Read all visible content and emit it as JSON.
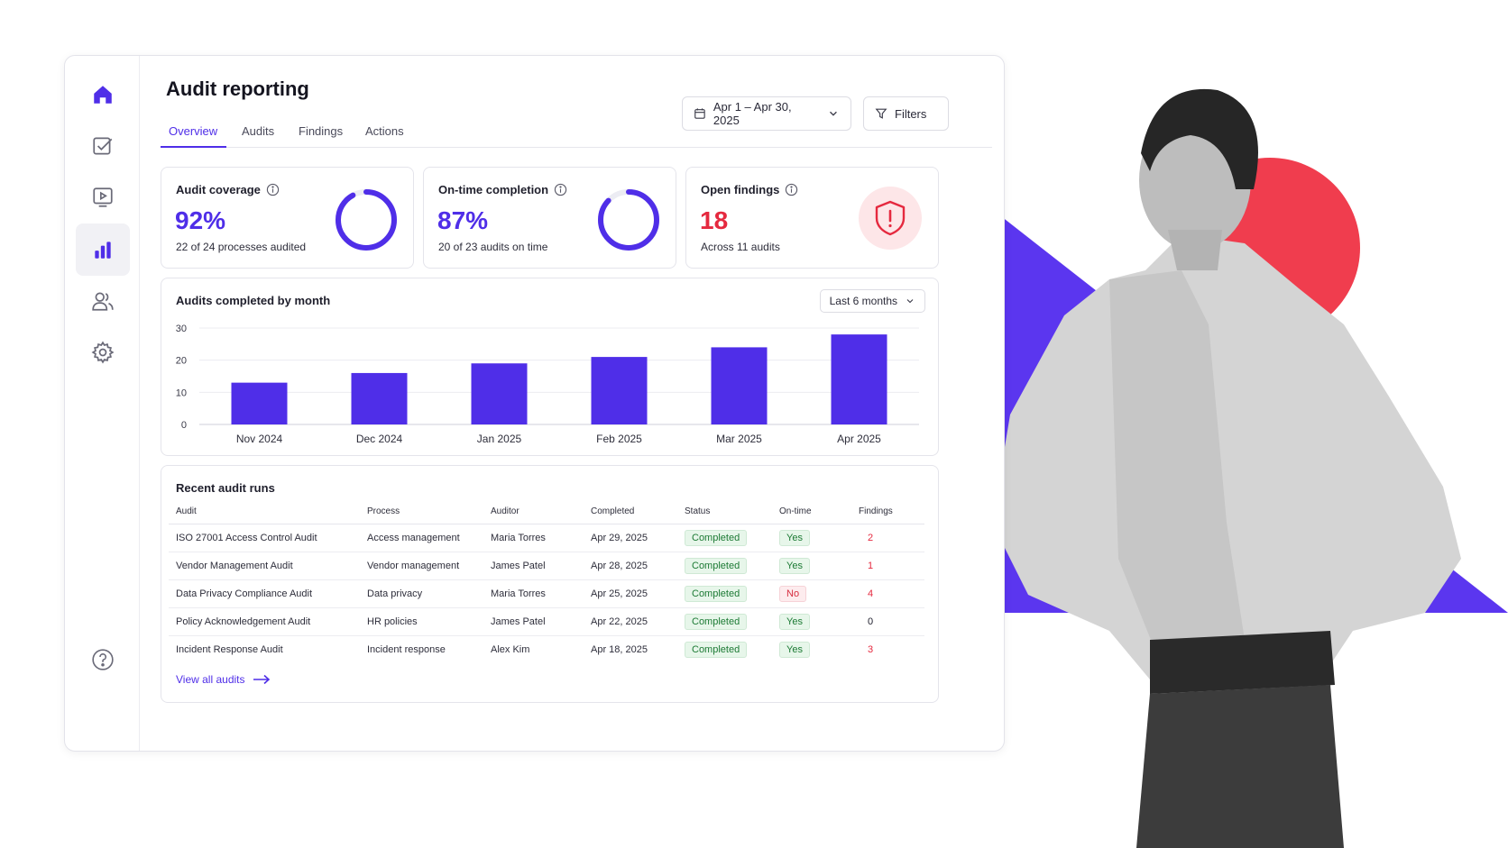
{
  "page": {
    "title": "Audit reporting"
  },
  "tabs": [
    "Overview",
    "Audits",
    "Findings",
    "Actions"
  ],
  "toolbar": {
    "date_range": "Apr 1 – Apr 30, 2025",
    "filters_label": "Filters"
  },
  "sidebar": {
    "items": [
      {
        "icon": "home-icon",
        "active": false
      },
      {
        "icon": "checklist-icon",
        "active": false
      },
      {
        "icon": "video-icon",
        "active": false
      },
      {
        "icon": "bar-chart-icon",
        "active": true
      },
      {
        "icon": "users-icon",
        "active": false
      },
      {
        "icon": "gear-icon",
        "active": false
      }
    ],
    "help_icon": "help-icon"
  },
  "kpis": [
    {
      "label": "Audit coverage",
      "value": "92%",
      "subtext": "22 of 24 processes audited",
      "progress": 0.92
    },
    {
      "label": "On-time completion",
      "value": "87%",
      "subtext": "20 of 23 audits on time",
      "progress": 0.87
    },
    {
      "label": "Open findings",
      "value": "18",
      "subtext": "Across 11 audits",
      "icon": "shield-alert-icon"
    }
  ],
  "colors": {
    "accent": "#4f2ee8",
    "danger": "#e5293f",
    "success": "#1c7a34",
    "deco_red": "#f03d4e",
    "deco_purple": "#5b36ef"
  },
  "chart_data": {
    "type": "bar",
    "title": "Audits completed by month",
    "range_select": "Last 6 months",
    "categories": [
      "Nov 2024",
      "Dec 2024",
      "Jan 2025",
      "Feb 2025",
      "Mar 2025",
      "Apr 2025"
    ],
    "values": [
      13,
      16,
      19,
      21,
      24,
      28
    ],
    "yticks": [
      0,
      10,
      20,
      30
    ],
    "ylim": [
      0,
      30
    ],
    "grid": true
  },
  "recent": {
    "title": "Recent audit runs",
    "columns": [
      "Audit",
      "Process",
      "Auditor",
      "Completed",
      "Status",
      "On-time",
      "Findings"
    ],
    "rows": [
      [
        "ISO 27001 Access Control Audit",
        "Access management",
        "Maria Torres",
        "Apr 29, 2025",
        "Completed",
        "Yes",
        "2"
      ],
      [
        "Vendor Management Audit",
        "Vendor management",
        "James Patel",
        "Apr 28, 2025",
        "Completed",
        "Yes",
        "1"
      ],
      [
        "Data Privacy Compliance Audit",
        "Data privacy",
        "Maria Torres",
        "Apr 25, 2025",
        "Completed",
        "No",
        "4"
      ],
      [
        "Policy Acknowledgement Audit",
        "HR policies",
        "James Patel",
        "Apr 22, 2025",
        "Completed",
        "Yes",
        "0"
      ],
      [
        "Incident Response Audit",
        "Incident response",
        "Alex Kim",
        "Apr 18, 2025",
        "Completed",
        "Yes",
        "3"
      ]
    ],
    "view_all": "View all audits"
  }
}
